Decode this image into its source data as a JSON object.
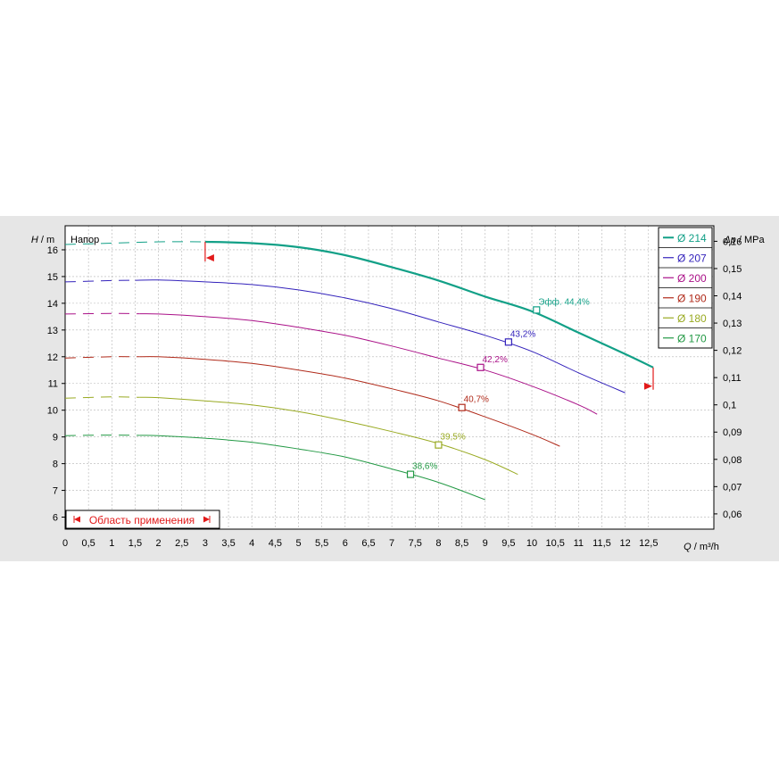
{
  "chart_data": {
    "type": "line",
    "title": "Напор",
    "xlabel_var": "Q",
    "xlabel_unit": "m³/h",
    "ylabel_var": "H",
    "ylabel_unit": "m",
    "y2label_var": "Δp",
    "y2label_unit": "MPa",
    "xlim": [
      0,
      13.9
    ],
    "ylim": [
      5.55,
      16.9
    ],
    "y2lim": [
      0.0544,
      0.1657
    ],
    "grid": true,
    "legend_position": "top-right",
    "x_ticks": [
      "0",
      "0,5",
      "1",
      "1,5",
      "2",
      "2,5",
      "3",
      "3,5",
      "4",
      "4,5",
      "5",
      "5,5",
      "6",
      "6,5",
      "7",
      "7,5",
      "8",
      "8,5",
      "9",
      "9,5",
      "10",
      "10,5",
      "11",
      "11,5",
      "12",
      "12,5"
    ],
    "x_tick_values": [
      0,
      0.5,
      1,
      1.5,
      2,
      2.5,
      3,
      3.5,
      4,
      4.5,
      5,
      5.5,
      6,
      6.5,
      7,
      7.5,
      8,
      8.5,
      9,
      9.5,
      10,
      10.5,
      11,
      11.5,
      12,
      12.5
    ],
    "y_ticks": [
      "6",
      "7",
      "8",
      "9",
      "10",
      "11",
      "12",
      "13",
      "14",
      "15",
      "16"
    ],
    "y_tick_values": [
      6,
      7,
      8,
      9,
      10,
      11,
      12,
      13,
      14,
      15,
      16
    ],
    "y2_ticks": [
      "0,06",
      "0,07",
      "0,08",
      "0,09",
      "0,1",
      "0,11",
      "0,12",
      "0,13",
      "0,14",
      "0,15",
      "0,16"
    ],
    "y2_tick_values": [
      0.06,
      0.07,
      0.08,
      0.09,
      0.1,
      0.11,
      0.12,
      0.13,
      0.14,
      0.15,
      0.16
    ],
    "application_range_label": "Область применения",
    "application_range": {
      "q_min": 3.0,
      "q_max": 12.6,
      "h_min": 15.7,
      "h_max": 10.9
    },
    "series": [
      {
        "name": "Ø 214",
        "color": "#12a087",
        "bold": true,
        "dashed_to": 3.0,
        "x": [
          0,
          1,
          2,
          3,
          4,
          5,
          6,
          7,
          8,
          9,
          10,
          11,
          12,
          12.6
        ],
        "y": [
          16.2,
          16.25,
          16.3,
          16.3,
          16.25,
          16.1,
          15.8,
          15.35,
          14.85,
          14.25,
          13.7,
          12.9,
          12.1,
          11.6
        ],
        "efficiency_label": "Эфф.  44,4%",
        "eff_q": 10.1,
        "eff_h": 13.75
      },
      {
        "name": "Ø 207",
        "color": "#3322bb",
        "bold": false,
        "dashed_to": 1.5,
        "x": [
          0,
          1,
          2,
          3,
          4,
          5,
          6,
          7,
          8,
          9,
          10,
          11,
          12
        ],
        "y": [
          14.8,
          14.85,
          14.87,
          14.8,
          14.7,
          14.5,
          14.2,
          13.8,
          13.3,
          12.8,
          12.2,
          11.4,
          10.65
        ],
        "efficiency_label": "43,2%",
        "eff_q": 9.5,
        "eff_h": 12.55
      },
      {
        "name": "Ø 200",
        "color": "#aa1188",
        "bold": false,
        "dashed_to": 1.6,
        "x": [
          0,
          1,
          2,
          3,
          4,
          5,
          6,
          7,
          8,
          9,
          10,
          11,
          11.4
        ],
        "y": [
          13.6,
          13.62,
          13.6,
          13.5,
          13.35,
          13.1,
          12.8,
          12.4,
          11.95,
          11.5,
          10.9,
          10.2,
          9.85
        ],
        "efficiency_label": "42,2%",
        "eff_q": 8.9,
        "eff_h": 11.6
      },
      {
        "name": "Ø 190",
        "color": "#b02a1a",
        "bold": false,
        "dashed_to": 1.6,
        "x": [
          0,
          1,
          2,
          3,
          4,
          5,
          6,
          7,
          8,
          9,
          10,
          10.6
        ],
        "y": [
          11.95,
          12.0,
          12.0,
          11.9,
          11.75,
          11.5,
          11.2,
          10.8,
          10.35,
          9.75,
          9.1,
          8.65
        ],
        "efficiency_label": "40,7%",
        "eff_q": 8.5,
        "eff_h": 10.1
      },
      {
        "name": "Ø 180",
        "color": "#99aa22",
        "bold": false,
        "dashed_to": 1.6,
        "x": [
          0,
          1,
          2,
          3,
          4,
          5,
          6,
          7,
          8,
          9,
          9.7
        ],
        "y": [
          10.45,
          10.5,
          10.47,
          10.35,
          10.2,
          9.95,
          9.6,
          9.2,
          8.75,
          8.15,
          7.6
        ],
        "efficiency_label": "39,5%",
        "eff_q": 8.0,
        "eff_h": 8.7
      },
      {
        "name": "Ø 170",
        "color": "#229944",
        "bold": false,
        "dashed_to": 1.6,
        "x": [
          0,
          1,
          2,
          3,
          4,
          5,
          6,
          7,
          8,
          9
        ],
        "y": [
          9.05,
          9.07,
          9.05,
          8.95,
          8.8,
          8.55,
          8.25,
          7.8,
          7.3,
          6.65
        ],
        "efficiency_label": "38,6%",
        "eff_q": 7.4,
        "eff_h": 7.6
      }
    ]
  }
}
